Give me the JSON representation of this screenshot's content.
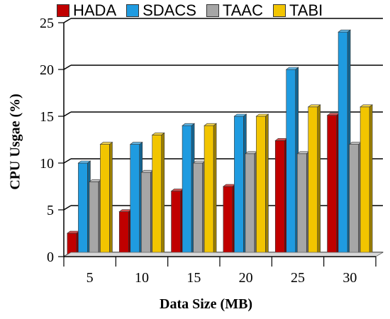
{
  "chart_data": {
    "type": "bar",
    "xlabel": "Data Size (MB)",
    "ylabel": "CPU Usgae (%)",
    "categories": [
      "5",
      "10",
      "15",
      "20",
      "25",
      "30"
    ],
    "ylim": [
      0,
      25
    ],
    "yticks": [
      "0",
      "5",
      "10",
      "15",
      "20",
      "25"
    ],
    "grid": true,
    "legend_position": "top",
    "series": [
      {
        "name": "HADA",
        "color": "#c00000",
        "values": [
          2.5,
          4.8,
          7.0,
          7.5,
          12.4,
          15.1
        ]
      },
      {
        "name": "SDACS",
        "color": "#1f9be0",
        "values": [
          10.0,
          12.0,
          14.0,
          15.0,
          20.0,
          24.0
        ]
      },
      {
        "name": "TAAC",
        "color": "#a6a6a6",
        "values": [
          8.0,
          9.0,
          10.0,
          11.0,
          11.0,
          12.0
        ]
      },
      {
        "name": "TABI",
        "color": "#f2c500",
        "values": [
          12.0,
          13.0,
          14.0,
          15.0,
          16.0,
          16.0
        ]
      }
    ]
  }
}
